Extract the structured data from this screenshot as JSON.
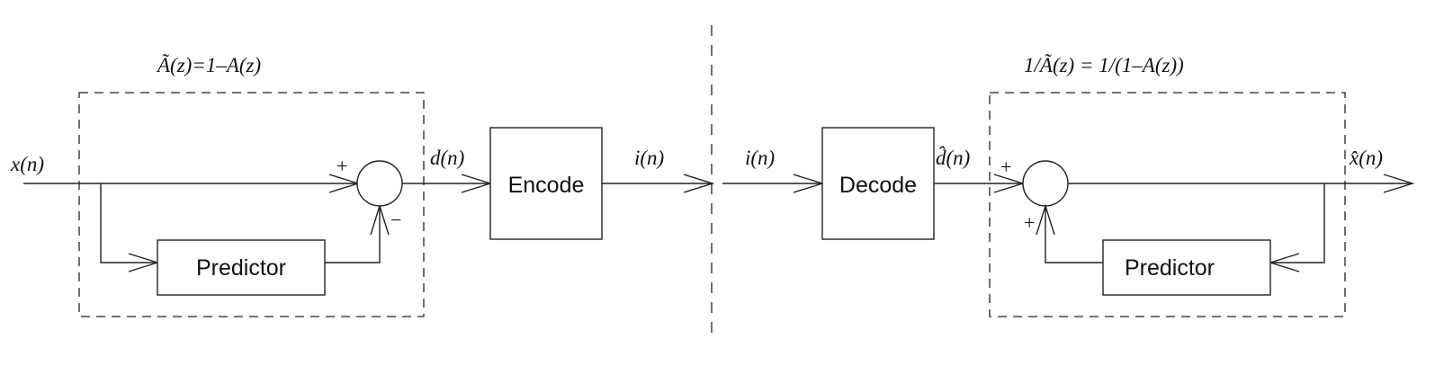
{
  "encoder": {
    "transfer_label": "Ã(z)=1–A(z)",
    "input_label": "x(n)",
    "residual_label": "d(n)",
    "predictor_label": "Predictor",
    "encode_label": "Encode",
    "index_label": "i(n)",
    "plus_sign": "+",
    "minus_sign": "−"
  },
  "decoder": {
    "transfer_label": "1/Ã(z) = 1/(1–A(z))",
    "index_label": "i(n)",
    "decode_label": "Decode",
    "residual_label": "d̂(n)",
    "output_label": "x̂(n)",
    "predictor_label": "Predictor",
    "plus_sign_top": "+",
    "plus_sign_feedback": "+"
  }
}
